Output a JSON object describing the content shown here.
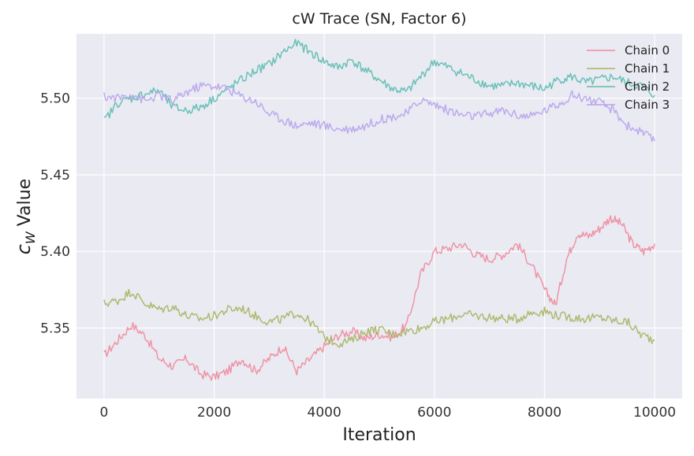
{
  "chart_data": {
    "type": "line",
    "title": "cW Trace (SN, Factor 6)",
    "xlabel": "Iteration",
    "ylabel": "c_W Value",
    "ylabel_parts": {
      "main": "c",
      "sub": "W",
      "rest": " Value"
    },
    "xlim": [
      -500,
      10500
    ],
    "ylim": [
      5.304,
      5.542
    ],
    "xticks": [
      0,
      2000,
      4000,
      6000,
      8000,
      10000
    ],
    "xtick_labels": [
      "0",
      "2000",
      "4000",
      "6000",
      "8000",
      "10000"
    ],
    "yticks": [
      5.35,
      5.4,
      5.45,
      5.5
    ],
    "ytick_labels": [
      "5.35",
      "5.40",
      "5.45",
      "5.50"
    ],
    "grid": true,
    "legend_position": "top-right",
    "series": [
      {
        "name": "Chain 0",
        "color": "#f08a9c",
        "x": [
          0,
          250,
          500,
          750,
          1000,
          1250,
          1500,
          1750,
          2000,
          2250,
          2500,
          2750,
          3000,
          3250,
          3500,
          3750,
          4000,
          4250,
          4500,
          4750,
          5000,
          5250,
          5500,
          5750,
          6000,
          6250,
          6500,
          6750,
          7000,
          7250,
          7500,
          7750,
          8000,
          8200,
          8400,
          8600,
          8800,
          9000,
          9200,
          9400,
          9600,
          9800,
          10000
        ],
        "y": [
          5.332,
          5.342,
          5.352,
          5.345,
          5.33,
          5.325,
          5.33,
          5.32,
          5.318,
          5.322,
          5.33,
          5.322,
          5.33,
          5.338,
          5.322,
          5.33,
          5.338,
          5.345,
          5.348,
          5.343,
          5.346,
          5.344,
          5.352,
          5.385,
          5.4,
          5.402,
          5.405,
          5.398,
          5.395,
          5.398,
          5.405,
          5.392,
          5.375,
          5.365,
          5.395,
          5.412,
          5.41,
          5.415,
          5.422,
          5.418,
          5.405,
          5.4,
          5.405
        ]
      },
      {
        "name": "Chain 1",
        "color": "#a8b460",
        "x": [
          0,
          250,
          500,
          750,
          1000,
          1250,
          1500,
          1750,
          2000,
          2250,
          2500,
          2750,
          3000,
          3250,
          3500,
          3750,
          4000,
          4250,
          4500,
          4750,
          5000,
          5250,
          5500,
          5750,
          6000,
          6250,
          6500,
          6750,
          7000,
          7250,
          7500,
          7750,
          8000,
          8250,
          8500,
          8750,
          9000,
          9250,
          9500,
          9750,
          10000
        ],
        "y": [
          5.366,
          5.368,
          5.374,
          5.366,
          5.362,
          5.364,
          5.358,
          5.356,
          5.358,
          5.362,
          5.363,
          5.358,
          5.354,
          5.356,
          5.36,
          5.354,
          5.344,
          5.34,
          5.342,
          5.348,
          5.349,
          5.346,
          5.348,
          5.35,
          5.354,
          5.356,
          5.359,
          5.358,
          5.357,
          5.356,
          5.356,
          5.36,
          5.361,
          5.358,
          5.357,
          5.356,
          5.357,
          5.355,
          5.354,
          5.346,
          5.342
        ]
      },
      {
        "name": "Chain 2",
        "color": "#5bbcb0",
        "x": [
          0,
          250,
          500,
          750,
          1000,
          1250,
          1500,
          1750,
          2000,
          2250,
          2500,
          2750,
          3000,
          3250,
          3500,
          3750,
          4000,
          4250,
          4500,
          4750,
          5000,
          5250,
          5500,
          5750,
          6000,
          6250,
          6500,
          6750,
          7000,
          7250,
          7500,
          7750,
          8000,
          8250,
          8500,
          8750,
          9000,
          9250,
          9500,
          9750,
          10000
        ],
        "y": [
          5.485,
          5.497,
          5.5,
          5.503,
          5.505,
          5.494,
          5.492,
          5.494,
          5.5,
          5.506,
          5.512,
          5.518,
          5.522,
          5.53,
          5.536,
          5.53,
          5.524,
          5.52,
          5.525,
          5.518,
          5.512,
          5.506,
          5.504,
          5.514,
          5.524,
          5.52,
          5.516,
          5.512,
          5.508,
          5.508,
          5.51,
          5.508,
          5.506,
          5.512,
          5.514,
          5.51,
          5.512,
          5.514,
          5.51,
          5.508,
          5.502
        ]
      },
      {
        "name": "Chain 3",
        "color": "#b7a3ec",
        "x": [
          0,
          250,
          500,
          750,
          1000,
          1250,
          1500,
          1750,
          2000,
          2250,
          2500,
          2750,
          3000,
          3250,
          3500,
          3750,
          4000,
          4250,
          4500,
          4750,
          5000,
          5250,
          5500,
          5750,
          6000,
          6250,
          6500,
          6750,
          7000,
          7250,
          7500,
          7750,
          8000,
          8250,
          8500,
          8750,
          9000,
          9250,
          9500,
          9750,
          10000
        ],
        "y": [
          5.501,
          5.5,
          5.503,
          5.498,
          5.502,
          5.498,
          5.504,
          5.508,
          5.508,
          5.506,
          5.501,
          5.498,
          5.49,
          5.486,
          5.482,
          5.484,
          5.482,
          5.48,
          5.48,
          5.482,
          5.486,
          5.488,
          5.49,
          5.499,
          5.496,
          5.492,
          5.489,
          5.488,
          5.49,
          5.492,
          5.489,
          5.488,
          5.492,
          5.496,
          5.502,
          5.5,
          5.497,
          5.492,
          5.482,
          5.478,
          5.472
        ]
      }
    ]
  }
}
